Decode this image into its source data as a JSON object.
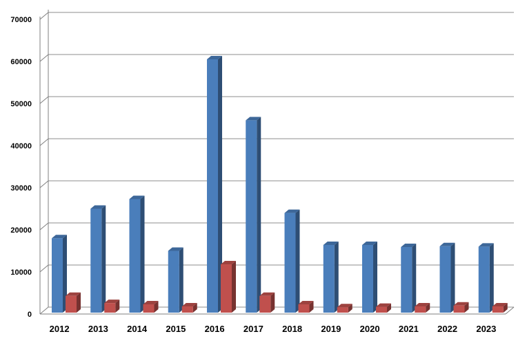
{
  "chart_data": {
    "type": "bar",
    "style": "3d-clustered-column",
    "categories": [
      "2012",
      "2013",
      "2014",
      "2015",
      "2016",
      "2017",
      "2018",
      "2019",
      "2020",
      "2021",
      "2022",
      "2023"
    ],
    "series": [
      {
        "values": [
          18000,
          25000,
          27300,
          15000,
          60500,
          46000,
          24000,
          16400,
          16400,
          15900,
          16100,
          16000
        ],
        "color": "#4a7ebb"
      },
      {
        "values": [
          4300,
          2600,
          2300,
          1800,
          11800,
          4300,
          2300,
          1600,
          1700,
          1800,
          2000,
          1800
        ],
        "color": "#c0504d"
      }
    ],
    "y_ticks": [
      "0",
      "10000",
      "20000",
      "30000",
      "40000",
      "50000",
      "60000",
      "70000"
    ],
    "ylim": [
      0,
      70000
    ],
    "grid": true,
    "legend": "none",
    "title": "",
    "xlabel": "",
    "ylabel": ""
  }
}
